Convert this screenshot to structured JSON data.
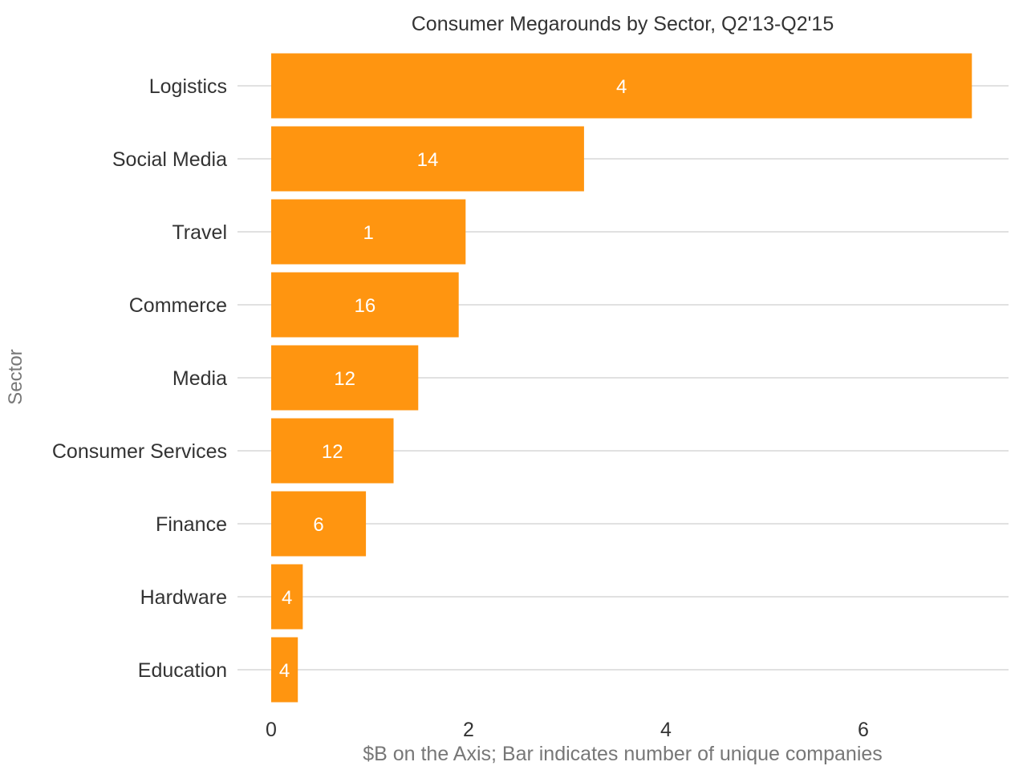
{
  "chart_data": {
    "type": "bar",
    "orientation": "horizontal",
    "title": "Consumer Megarounds by Sector, Q2'13-Q2'15",
    "xlabel": "$B on the Axis; Bar indicates number of unique companies",
    "ylabel": "Sector",
    "categories": [
      "Logistics",
      "Social Media",
      "Travel",
      "Commerce",
      "Media",
      "Consumer Services",
      "Finance",
      "Hardware",
      "Education"
    ],
    "values": [
      7.1,
      3.17,
      1.97,
      1.9,
      1.49,
      1.24,
      0.96,
      0.32,
      0.27
    ],
    "bar_labels": [
      "4",
      "14",
      "1",
      "16",
      "12",
      "12",
      "6",
      "4",
      "4"
    ],
    "xlim": [
      0,
      7.5
    ],
    "xticks": [
      0,
      2,
      4,
      6
    ],
    "xtick_labels": [
      "0",
      "2",
      "4",
      "6"
    ],
    "grid": "horizontal",
    "bar_color": "#FF9510"
  }
}
